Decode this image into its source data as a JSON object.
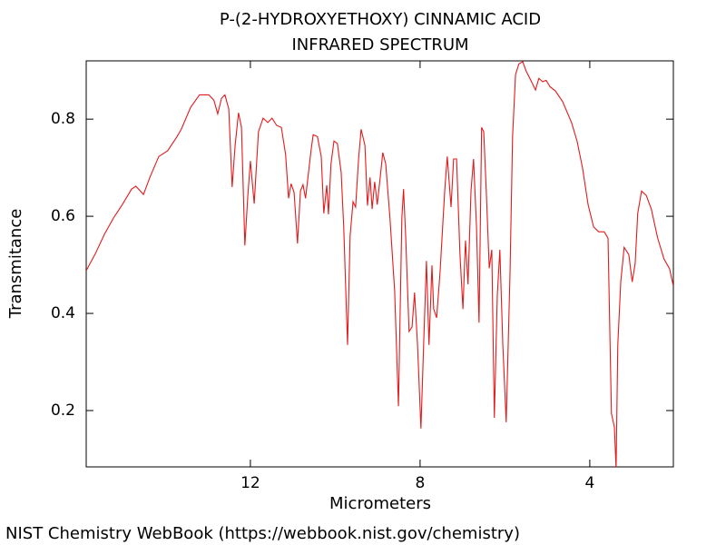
{
  "chart_data": {
    "type": "line",
    "title": "P-(2-HYDROXYETHOXY) CINNAMIC ACID",
    "subtitle": "INFRARED SPECTRUM",
    "x_label": "Micrometers",
    "y_label": "Transmitance",
    "source": "NIST Chemistry WebBook (https://webbook.nist.gov/chemistry)",
    "xlim": [
      15.87,
      2.03
    ],
    "ylim": [
      0.084,
      0.92
    ],
    "xticks": [
      12,
      8,
      4
    ],
    "yticks": [
      0.2,
      0.4,
      0.6,
      0.8
    ],
    "x": [
      15.87,
      15.66,
      15.44,
      15.23,
      15.02,
      14.8,
      14.7,
      14.52,
      14.37,
      14.16,
      13.95,
      13.73,
      13.63,
      13.41,
      13.2,
      12.98,
      12.86,
      12.77,
      12.68,
      12.6,
      12.51,
      12.43,
      12.36,
      12.28,
      12.21,
      12.13,
      12.06,
      12.0,
      11.91,
      11.81,
      11.7,
      11.59,
      11.49,
      11.38,
      11.27,
      11.17,
      11.1,
      11.04,
      10.97,
      10.89,
      10.82,
      10.76,
      10.7,
      10.63,
      10.57,
      10.52,
      10.42,
      10.33,
      10.27,
      10.2,
      10.16,
      10.1,
      10.03,
      9.95,
      9.86,
      9.8,
      9.71,
      9.65,
      9.58,
      9.52,
      9.45,
      9.39,
      9.3,
      9.24,
      9.18,
      9.13,
      9.07,
      9.01,
      8.94,
      8.88,
      8.81,
      8.71,
      8.6,
      8.51,
      8.43,
      8.39,
      8.34,
      8.26,
      8.19,
      8.13,
      8.06,
      7.98,
      7.91,
      7.85,
      7.79,
      7.72,
      7.68,
      7.61,
      7.53,
      7.42,
      7.36,
      7.27,
      7.21,
      7.14,
      7.06,
      6.99,
      6.93,
      6.87,
      6.8,
      6.74,
      6.67,
      6.61,
      6.55,
      6.5,
      6.44,
      6.37,
      6.31,
      6.25,
      6.18,
      6.12,
      6.05,
      5.97,
      5.88,
      5.82,
      5.75,
      5.67,
      5.58,
      5.5,
      5.39,
      5.28,
      5.2,
      5.11,
      5.03,
      4.94,
      4.81,
      4.64,
      4.43,
      4.3,
      4.17,
      4.04,
      3.91,
      3.79,
      3.66,
      3.57,
      3.49,
      3.42,
      3.38,
      3.34,
      3.27,
      3.19,
      3.08,
      3.0,
      2.93,
      2.87,
      2.78,
      2.67,
      2.55,
      2.4,
      2.25,
      2.12,
      2.03
    ],
    "series": [
      {
        "name": "P-(2-HYDROXYETHOXY) CINNAMIC ACID",
        "color": "#e31a1c",
        "values": [
          0.488,
          0.522,
          0.563,
          0.596,
          0.624,
          0.656,
          0.662,
          0.645,
          0.68,
          0.723,
          0.735,
          0.764,
          0.779,
          0.824,
          0.85,
          0.85,
          0.839,
          0.811,
          0.843,
          0.85,
          0.821,
          0.66,
          0.746,
          0.813,
          0.783,
          0.54,
          0.643,
          0.714,
          0.626,
          0.774,
          0.802,
          0.793,
          0.802,
          0.787,
          0.783,
          0.727,
          0.637,
          0.667,
          0.649,
          0.544,
          0.652,
          0.665,
          0.637,
          0.69,
          0.736,
          0.768,
          0.764,
          0.723,
          0.606,
          0.664,
          0.604,
          0.708,
          0.755,
          0.75,
          0.69,
          0.578,
          0.335,
          0.559,
          0.63,
          0.619,
          0.718,
          0.779,
          0.746,
          0.622,
          0.68,
          0.615,
          0.671,
          0.624,
          0.68,
          0.731,
          0.708,
          0.596,
          0.447,
          0.209,
          0.596,
          0.656,
          0.559,
          0.363,
          0.372,
          0.443,
          0.335,
          0.163,
          0.353,
          0.508,
          0.335,
          0.499,
          0.409,
          0.391,
          0.484,
          0.652,
          0.723,
          0.619,
          0.718,
          0.718,
          0.522,
          0.409,
          0.55,
          0.46,
          0.652,
          0.718,
          0.578,
          0.381,
          0.783,
          0.774,
          0.652,
          0.493,
          0.531,
          0.185,
          0.437,
          0.531,
          0.335,
          0.176,
          0.484,
          0.764,
          0.892,
          0.914,
          0.918,
          0.899,
          0.88,
          0.86,
          0.884,
          0.877,
          0.88,
          0.867,
          0.858,
          0.836,
          0.793,
          0.755,
          0.699,
          0.624,
          0.578,
          0.568,
          0.568,
          0.555,
          0.194,
          0.166,
          0.08,
          0.335,
          0.465,
          0.536,
          0.521,
          0.465,
          0.503,
          0.606,
          0.652,
          0.643,
          0.615,
          0.555,
          0.512,
          0.492,
          0.456
        ]
      }
    ]
  }
}
